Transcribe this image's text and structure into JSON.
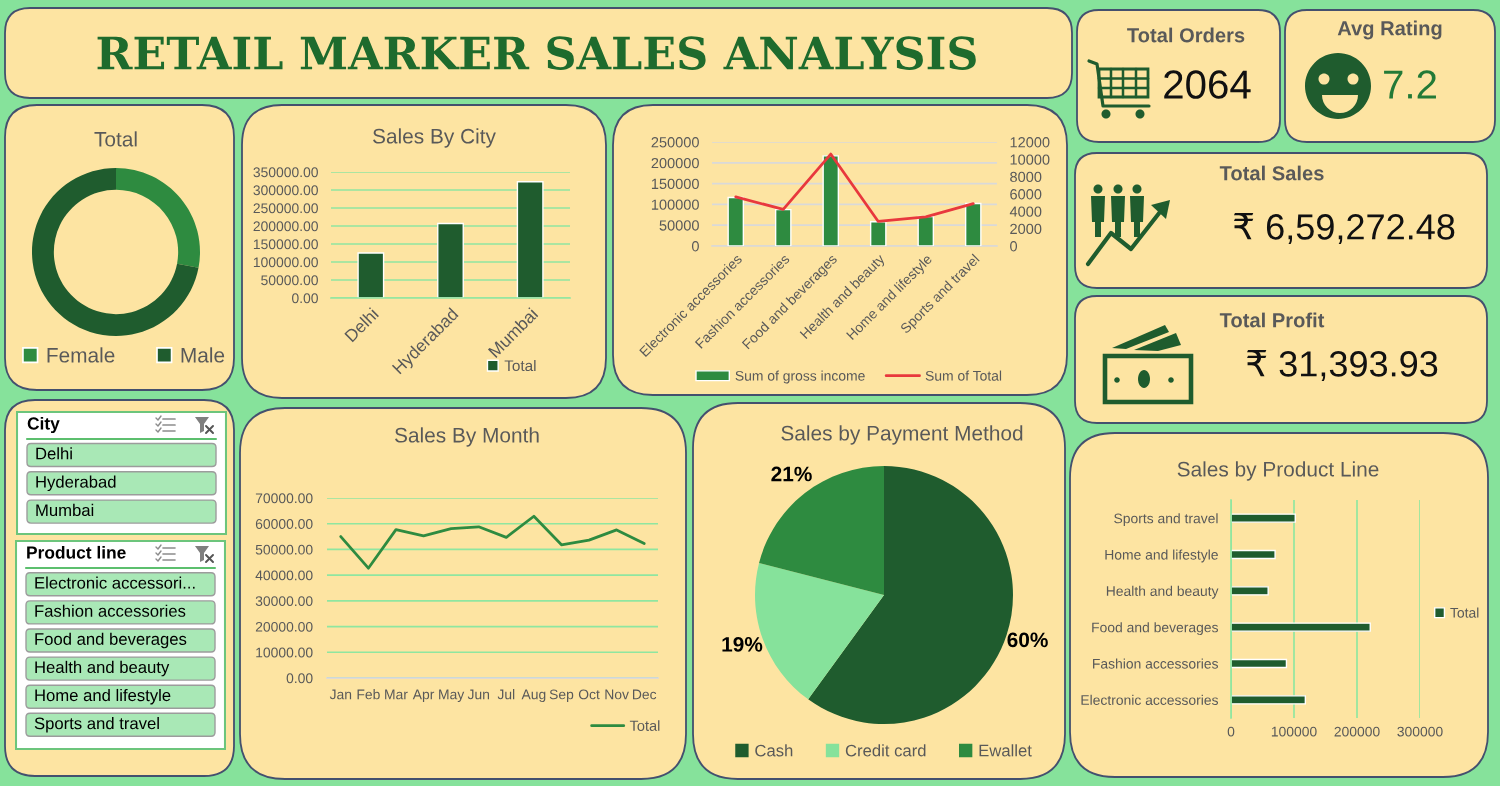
{
  "chart_data": [
    {
      "type": "other",
      "title": "RETAIL MARKER SALES ANALYSIS"
    },
    {
      "type": "other",
      "title": "Total Orders",
      "annotations": [
        "2064"
      ]
    },
    {
      "type": "other",
      "title": "Avg Rating",
      "annotations": [
        "7.2"
      ]
    },
    {
      "type": "donut",
      "title": "Total",
      "categories": [
        "Female",
        "Male"
      ],
      "values": [
        28,
        72
      ],
      "colors": [
        "#2e8b40",
        "#1f5c2e"
      ],
      "legend": "bottom"
    },
    {
      "type": "bar",
      "title": "Sales By City",
      "categories": [
        "Delhi",
        "Hyderabad",
        "Mumbai"
      ],
      "series": [
        {
          "name": "Total",
          "color": "#1f5c2e",
          "values": [
            125000,
            207000,
            323000
          ]
        }
      ],
      "ylim": [
        0,
        350000
      ],
      "yticks": [
        {
          "value": 0,
          "label": "0.00"
        },
        {
          "value": 50000,
          "label": "50000.00"
        },
        {
          "value": 100000,
          "label": "100000.00"
        },
        {
          "value": 150000,
          "label": "150000.00"
        },
        {
          "value": 200000,
          "label": "200000.00"
        },
        {
          "value": 250000,
          "label": "250000.00"
        },
        {
          "value": 300000,
          "label": "300000.00"
        },
        {
          "value": 350000,
          "label": "350000.00"
        }
      ],
      "grid": "y",
      "legend": "bottom"
    },
    {
      "type": "bar",
      "categories": [
        "Electronic accessories",
        "Fashion accessories",
        "Food and beverages",
        "Health and beauty",
        "Home and lifestyle",
        "Sports and travel"
      ],
      "series": [
        {
          "name": "Sum of gross income",
          "type": "bar",
          "axis": "y2",
          "color": "#2e8b40",
          "values": [
            5600,
            4200,
            10400,
            2800,
            3400,
            4900
          ]
        },
        {
          "name": "Sum of Total",
          "type": "line",
          "color": "#e8383d",
          "values": [
            118000,
            88000,
            221000,
            59000,
            70000,
            102000
          ]
        }
      ],
      "ylim": [
        0,
        250000
      ],
      "yticks": [
        0,
        50000,
        100000,
        150000,
        200000,
        250000
      ],
      "y2lim": [
        0,
        12000
      ],
      "y2ticks": [
        0,
        2000,
        4000,
        6000,
        8000,
        10000,
        12000
      ],
      "grid": "y",
      "legend": "bottom"
    },
    {
      "type": "other",
      "title": "Total Sales",
      "annotations": [
        "₹ 6,59,272.48"
      ]
    },
    {
      "type": "other",
      "title": "Total Profit",
      "annotations": [
        "₹ 31,393.93"
      ]
    },
    {
      "type": "other",
      "title": "City",
      "annotations": [
        "Delhi",
        "Hyderabad",
        "Mumbai"
      ]
    },
    {
      "type": "other",
      "title": "Product line",
      "annotations": [
        "Electronic accessori...",
        "Fashion accessories",
        "Food and beverages",
        "Health and beauty",
        "Home and lifestyle",
        "Sports and travel"
      ]
    },
    {
      "type": "line",
      "title": "Sales By Month",
      "categories": [
        "Jan",
        "Feb",
        "Mar",
        "Apr",
        "May",
        "Jun",
        "Jul",
        "Aug",
        "Sep",
        "Oct",
        "Nov",
        "Dec"
      ],
      "series": [
        {
          "name": "Total",
          "color": "#2e8b40",
          "values": [
            55000,
            42700,
            57700,
            55300,
            58100,
            58800,
            54700,
            62900,
            51800,
            53600,
            57600,
            52300
          ]
        }
      ],
      "ylim": [
        0,
        70000
      ],
      "yticks": [
        {
          "value": 0,
          "label": "0.00"
        },
        {
          "value": 10000,
          "label": "10000.00"
        },
        {
          "value": 20000,
          "label": "20000.00"
        },
        {
          "value": 30000,
          "label": "30000.00"
        },
        {
          "value": 40000,
          "label": "40000.00"
        },
        {
          "value": 50000,
          "label": "50000.00"
        },
        {
          "value": 60000,
          "label": "60000.00"
        },
        {
          "value": 70000,
          "label": "70000.00"
        }
      ],
      "grid": "y",
      "legend": "bottom"
    },
    {
      "type": "pie",
      "title": "Sales by Payment Method",
      "categories": [
        "Cash",
        "Credit card",
        "Ewallet"
      ],
      "values": [
        60,
        19,
        21
      ],
      "colors": [
        "#1f5c2e",
        "#86e29b",
        "#2e8b40"
      ],
      "value_labels": [
        "60%",
        "19%",
        "21%"
      ],
      "legend": "bottom"
    },
    {
      "type": "bar",
      "orientation": "horizontal",
      "title": "Sales by Product Line",
      "categories": [
        "Sports and travel",
        "Home and lifestyle",
        "Health and beauty",
        "Food and beverages",
        "Fashion accessories",
        "Electronic accessories"
      ],
      "series": [
        {
          "name": "Total",
          "color": "#1f5c2e",
          "values": [
            102000,
            70000,
            59000,
            221000,
            88000,
            118000
          ]
        }
      ],
      "xlim": [
        0,
        300000
      ],
      "xticks": [
        0,
        100000,
        200000,
        300000
      ],
      "grid": "x",
      "legend": "right"
    }
  ]
}
